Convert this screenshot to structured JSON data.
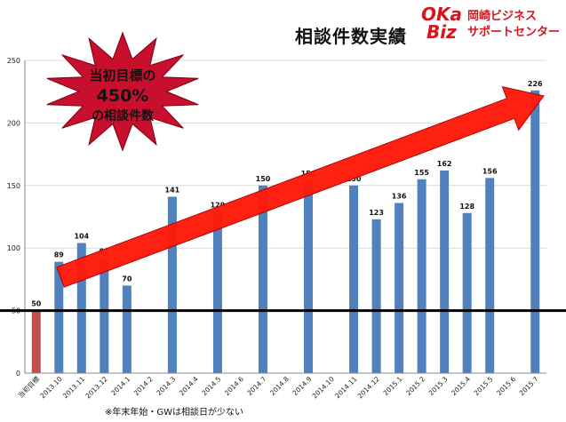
{
  "title": "相談件数実績",
  "logo": {
    "mark_line1": "OKa",
    "mark_line2": "Biz",
    "line1": "岡崎ビジネス",
    "line2": "サポートセンター"
  },
  "burst": {
    "line1": "当初目標の",
    "line2": "450%",
    "line3": "の相談件数"
  },
  "footnote": "※年末年始・GWは相談日が少ない",
  "colors": {
    "bar": "#4f81bd",
    "target_bar": "#c0504d",
    "arrow": "#ff1a0a",
    "burst": "#c8102e",
    "axis": "#888888"
  },
  "chart_data": {
    "type": "bar",
    "categories": [
      "当初目標",
      "2013.10",
      "2013.11",
      "2013.12",
      "2014.1",
      "2014.2",
      "2014.3",
      "2014.4",
      "2014.5",
      "2014.6",
      "2014.7",
      "2014.8",
      "2014.9",
      "2014.10",
      "2014.11",
      "2014.12",
      "2015.1",
      "2015.2",
      "2015.3",
      "2015.4",
      "2015.5",
      "2015.6",
      "2015.7"
    ],
    "values": [
      50,
      89,
      104,
      92,
      70,
      null,
      141,
      null,
      129,
      null,
      150,
      null,
      154,
      null,
      150,
      123,
      136,
      155,
      162,
      128,
      156,
      null,
      226
    ],
    "data_labels": [
      "50",
      "89",
      "104",
      "92",
      "70",
      "",
      "141",
      "",
      "129",
      "",
      "150",
      "",
      "154",
      "",
      "150",
      "123",
      "136",
      "155",
      "162",
      "128",
      "156",
      "",
      "226"
    ],
    "ylim": [
      0,
      250
    ],
    "yticks": [
      0,
      50,
      100,
      150,
      200,
      250
    ],
    "reference_line": 50,
    "grid": true,
    "legend": "none"
  }
}
